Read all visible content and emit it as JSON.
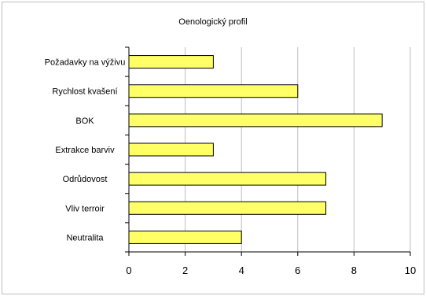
{
  "chart_data": {
    "type": "bar",
    "orientation": "horizontal",
    "title": "Oenologický profil",
    "categories": [
      "Požadavky na výživu",
      "Rychlost kvašení",
      "BOK",
      "Extrakce barviv",
      "Odrůdovost",
      "Vliv terroir",
      "Neutralita"
    ],
    "values": [
      3,
      6,
      9,
      3,
      7,
      7,
      4
    ],
    "xlim": [
      0,
      10
    ],
    "xticks": [
      0,
      2,
      4,
      6,
      8,
      10
    ],
    "xlabel": "",
    "ylabel": "",
    "grid": "vertical",
    "legend": "none",
    "bar_color": "#ffff66",
    "bar_edge_color": "#000000",
    "grid_color": "#bfbfbf"
  }
}
